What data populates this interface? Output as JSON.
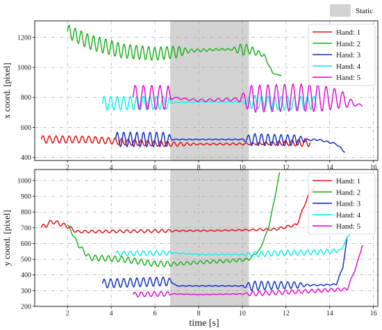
{
  "figure_legend": {
    "static_label": "Static",
    "static_color": "#d3d3d3"
  },
  "xlabel": "time [s]",
  "x_ticks": [
    "2",
    "4",
    "6",
    "8",
    "10",
    "12",
    "14",
    "16"
  ],
  "static_interval": [
    6.7,
    10.3
  ],
  "colors": {
    "Hand: 1": "#e01010",
    "Hand: 2": "#20b020",
    "Hand: 3": "#1030c0",
    "Hand: 4": "#10f0f0",
    "Hand: 5": "#e010d0"
  },
  "chart_data": [
    {
      "type": "line",
      "title": "",
      "xlabel": "time [s]",
      "ylabel": "x coord. [pixel]",
      "xlim": [
        0.5,
        16.2
      ],
      "ylim": [
        380,
        1310
      ],
      "y_ticks": [
        "400",
        "600",
        "800",
        "1000",
        "1200"
      ],
      "legend_position": "top-right",
      "series": [
        {
          "name": "Hand: 1",
          "t_start": 0.8,
          "t_end": 13.1,
          "base": [
            [
              0.8,
              520
            ],
            [
              3.0,
              520
            ],
            [
              5.0,
              500
            ],
            [
              7.0,
              488
            ],
            [
              10.0,
              490
            ],
            [
              13.1,
              500
            ]
          ],
          "amp": [
            [
              0.8,
              25
            ],
            [
              6.5,
              18
            ],
            [
              8.0,
              5
            ],
            [
              11.0,
              8
            ],
            [
              13.1,
              28
            ]
          ],
          "period": 0.3
        },
        {
          "name": "Hand: 2",
          "t_start": 2.0,
          "t_end": 11.8,
          "base": [
            [
              2.0,
              1240
            ],
            [
              3.0,
              1170
            ],
            [
              4.5,
              1110
            ],
            [
              6.0,
              1090
            ],
            [
              7.5,
              1110
            ],
            [
              9.0,
              1120
            ],
            [
              10.3,
              1120
            ],
            [
              11.0,
              1080
            ],
            [
              11.4,
              960
            ],
            [
              11.8,
              945
            ]
          ],
          "amp": [
            [
              2.0,
              45
            ],
            [
              3.5,
              50
            ],
            [
              5.5,
              45
            ],
            [
              7.0,
              40
            ],
            [
              7.6,
              10
            ],
            [
              9.5,
              5
            ],
            [
              10.0,
              40
            ],
            [
              10.8,
              15
            ],
            [
              11.4,
              2
            ],
            [
              11.8,
              0
            ]
          ],
          "period": 0.28
        },
        {
          "name": "Hand: 3",
          "t_start": 4.2,
          "t_end": 14.7,
          "base": [
            [
              4.2,
              520
            ],
            [
              6.7,
              520
            ],
            [
              8.0,
              520
            ],
            [
              10.3,
              520
            ],
            [
              12.0,
              515
            ],
            [
              13.5,
              518
            ],
            [
              14.3,
              490
            ],
            [
              14.7,
              435
            ]
          ],
          "amp": [
            [
              4.2,
              48
            ],
            [
              6.6,
              48
            ],
            [
              6.8,
              3
            ],
            [
              10.0,
              3
            ],
            [
              10.4,
              40
            ],
            [
              12.5,
              35
            ],
            [
              13.0,
              5
            ],
            [
              14.7,
              5
            ]
          ],
          "period": 0.3
        },
        {
          "name": "Hand: 4",
          "t_start": 3.6,
          "t_end": 13.4,
          "base": [
            [
              3.6,
              760
            ],
            [
              6.7,
              765
            ],
            [
              8.0,
              770
            ],
            [
              10.3,
              770
            ],
            [
              12.0,
              760
            ],
            [
              13.4,
              765
            ]
          ],
          "amp": [
            [
              3.6,
              45
            ],
            [
              6.6,
              45
            ],
            [
              6.8,
              3
            ],
            [
              10.0,
              3
            ],
            [
              10.4,
              45
            ],
            [
              13.4,
              45
            ]
          ],
          "period": 0.3
        },
        {
          "name": "Hand: 5",
          "t_start": 5.0,
          "t_end": 15.5,
          "base": [
            [
              5.0,
              800
            ],
            [
              6.7,
              800
            ],
            [
              8.0,
              780
            ],
            [
              10.3,
              790
            ],
            [
              12.5,
              800
            ],
            [
              14.5,
              790
            ],
            [
              15.0,
              760
            ],
            [
              15.5,
              745
            ]
          ],
          "amp": [
            [
              5.0,
              80
            ],
            [
              6.6,
              80
            ],
            [
              6.8,
              5
            ],
            [
              9.8,
              10
            ],
            [
              10.4,
              90
            ],
            [
              13.5,
              90
            ],
            [
              14.5,
              60
            ],
            [
              15.2,
              10
            ],
            [
              15.5,
              5
            ]
          ],
          "period": 0.38
        }
      ]
    },
    {
      "type": "line",
      "title": "",
      "xlabel": "time [s]",
      "ylabel": "y coord. [pixel]",
      "xlim": [
        0.5,
        16.2
      ],
      "ylim": [
        200,
        1070
      ],
      "y_ticks": [
        "200",
        "300",
        "400",
        "500",
        "600",
        "700",
        "800",
        "900",
        "1000"
      ],
      "legend_position": "top-right",
      "series": [
        {
          "name": "Hand: 1",
          "t_start": 0.8,
          "t_end": 13.3,
          "base": [
            [
              0.8,
              700
            ],
            [
              1.3,
              740
            ],
            [
              2.0,
              710
            ],
            [
              2.4,
              675
            ],
            [
              6.7,
              680
            ],
            [
              9.0,
              682
            ],
            [
              11.5,
              690
            ],
            [
              12.5,
              720
            ],
            [
              13.0,
              900
            ],
            [
              13.3,
              960
            ]
          ],
          "amp": [
            [
              0.8,
              15
            ],
            [
              2.0,
              12
            ],
            [
              2.5,
              8
            ],
            [
              6.5,
              10
            ],
            [
              7.0,
              4
            ],
            [
              10.0,
              4
            ],
            [
              12.0,
              8
            ],
            [
              13.3,
              5
            ]
          ],
          "period": 0.32
        },
        {
          "name": "Hand: 2",
          "t_start": 2.0,
          "t_end": 11.7,
          "base": [
            [
              2.0,
              720
            ],
            [
              2.5,
              590
            ],
            [
              3.0,
              510
            ],
            [
              4.5,
              500
            ],
            [
              6.0,
              470
            ],
            [
              7.0,
              470
            ],
            [
              8.0,
              480
            ],
            [
              9.5,
              490
            ],
            [
              10.3,
              500
            ],
            [
              10.8,
              560
            ],
            [
              11.2,
              700
            ],
            [
              11.5,
              900
            ],
            [
              11.7,
              1050
            ]
          ],
          "amp": [
            [
              2.0,
              5
            ],
            [
              3.0,
              18
            ],
            [
              6.5,
              18
            ],
            [
              7.0,
              10
            ],
            [
              10.0,
              10
            ],
            [
              10.8,
              5
            ],
            [
              11.7,
              2
            ]
          ],
          "period": 0.3
        },
        {
          "name": "Hand: 3",
          "t_start": 3.6,
          "t_end": 14.8,
          "base": [
            [
              3.6,
              345
            ],
            [
              6.7,
              360
            ],
            [
              7.0,
              330
            ],
            [
              10.3,
              330
            ],
            [
              12.0,
              335
            ],
            [
              13.5,
              335
            ],
            [
              14.3,
              340
            ],
            [
              14.6,
              450
            ],
            [
              14.8,
              640
            ]
          ],
          "amp": [
            [
              3.6,
              28
            ],
            [
              6.6,
              28
            ],
            [
              6.8,
              2
            ],
            [
              10.0,
              2
            ],
            [
              10.4,
              30
            ],
            [
              12.5,
              20
            ],
            [
              13.0,
              5
            ],
            [
              14.8,
              3
            ]
          ],
          "period": 0.3
        },
        {
          "name": "Hand: 4",
          "t_start": 4.2,
          "t_end": 14.9,
          "base": [
            [
              4.2,
              535
            ],
            [
              6.7,
              540
            ],
            [
              8.0,
              530
            ],
            [
              10.3,
              530
            ],
            [
              12.0,
              540
            ],
            [
              13.5,
              545
            ],
            [
              14.5,
              555
            ],
            [
              14.9,
              660
            ]
          ],
          "amp": [
            [
              4.2,
              15
            ],
            [
              6.6,
              15
            ],
            [
              6.8,
              3
            ],
            [
              10.0,
              3
            ],
            [
              10.4,
              18
            ],
            [
              14.0,
              15
            ],
            [
              14.9,
              3
            ]
          ],
          "period": 0.3
        },
        {
          "name": "Hand: 5",
          "t_start": 5.0,
          "t_end": 15.5,
          "base": [
            [
              5.0,
              275
            ],
            [
              6.7,
              280
            ],
            [
              8.0,
              275
            ],
            [
              10.3,
              280
            ],
            [
              12.0,
              290
            ],
            [
              13.5,
              300
            ],
            [
              14.8,
              310
            ],
            [
              15.2,
              450
            ],
            [
              15.5,
              590
            ]
          ],
          "amp": [
            [
              5.0,
              15
            ],
            [
              6.6,
              15
            ],
            [
              6.8,
              2
            ],
            [
              10.0,
              2
            ],
            [
              10.4,
              15
            ],
            [
              14.5,
              10
            ],
            [
              15.5,
              2
            ]
          ],
          "period": 0.3
        }
      ]
    }
  ]
}
